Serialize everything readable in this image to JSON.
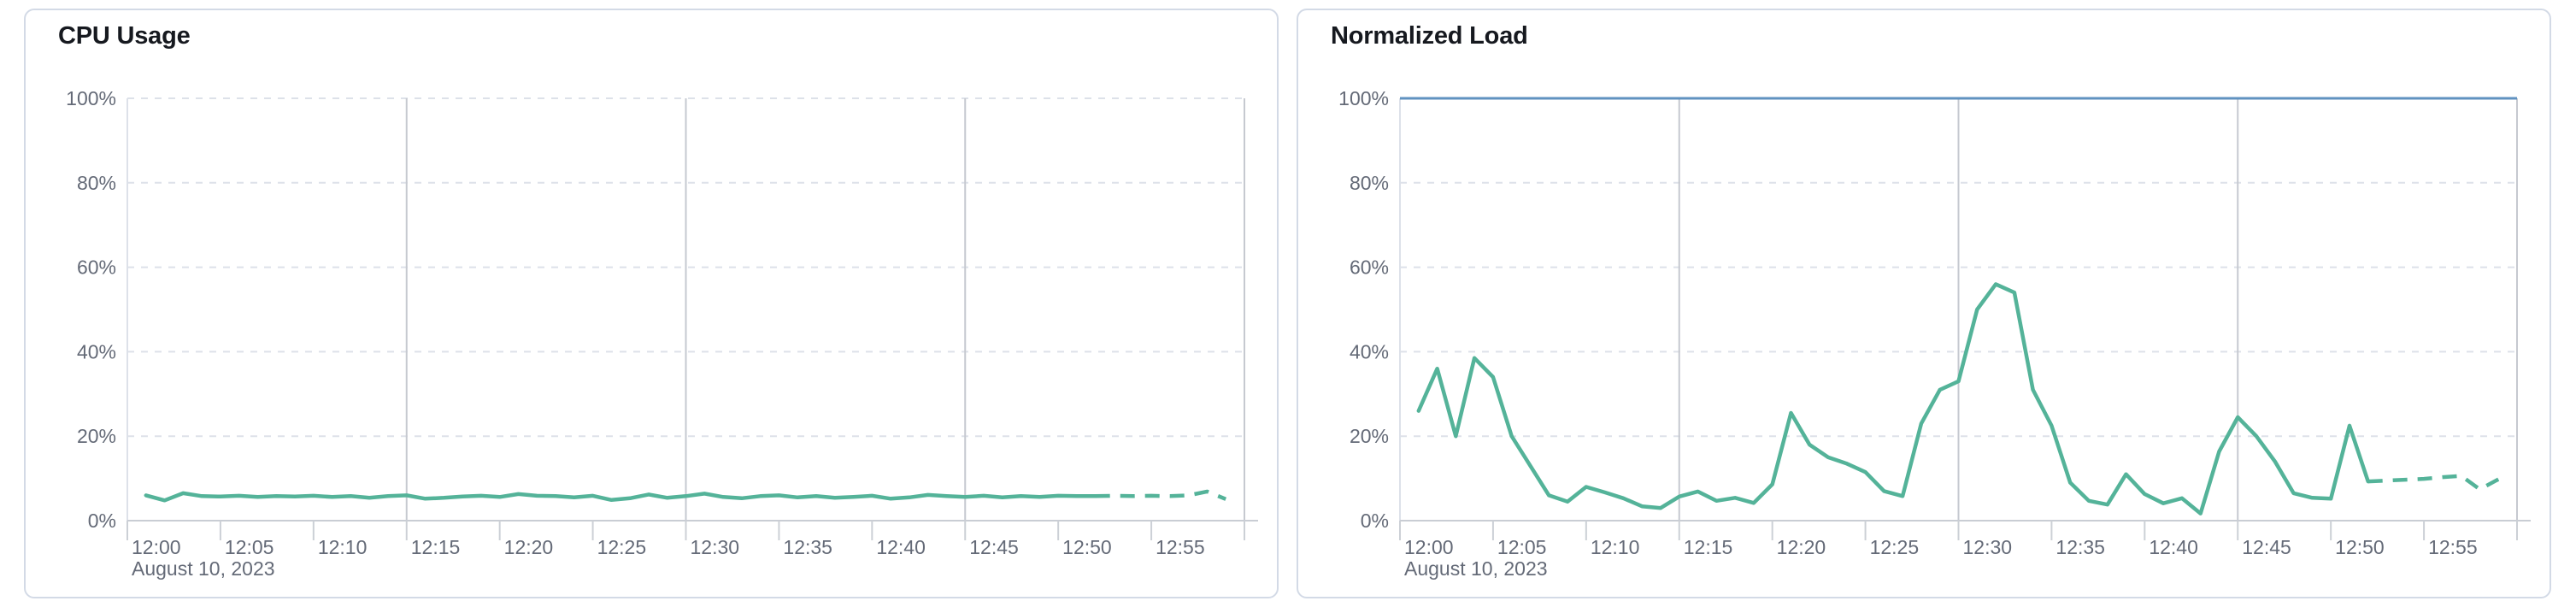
{
  "style": {
    "page_background": "#ffffff",
    "panel_background": "#ffffff",
    "panel_border": "#d3dae6",
    "title_color": "#16191f",
    "axis_text_color": "#646a77",
    "grid_dashed_color": "#dde1e9",
    "grid_vertical_color": "#c6c9d0",
    "axis_line_color": "#c9cdd4",
    "yaxis_line_color": "#dde1e9",
    "tick_color": "#ccd0d6",
    "series_green": "#54b399",
    "threshold_blue": "#6092c0"
  },
  "panels": [
    {
      "title": "CPU Usage"
    },
    {
      "title": "Normalized Load"
    }
  ],
  "chart_data": [
    {
      "type": "line",
      "title": "CPU Usage",
      "x_axis": {
        "tick_labels": [
          "12:00",
          "12:05",
          "12:10",
          "12:15",
          "12:20",
          "12:25",
          "12:30",
          "12:35",
          "12:40",
          "12:45",
          "12:50",
          "12:55"
        ],
        "tick_minutes": [
          0,
          5,
          10,
          15,
          20,
          25,
          30,
          35,
          40,
          45,
          50,
          55
        ],
        "end_tick_minute": 60,
        "date_label": "August 10, 2023",
        "range_minutes": [
          0,
          60
        ]
      },
      "y_axis": {
        "tick_labels": [
          "0%",
          "20%",
          "40%",
          "60%",
          "80%",
          "100%"
        ],
        "tick_values": [
          0,
          20,
          40,
          60,
          80,
          100
        ],
        "ylim": [
          0,
          100
        ]
      },
      "grid": {
        "horizontal_style": "dashed",
        "vertical_minutes": [
          15,
          30,
          45,
          60
        ]
      },
      "threshold_line": null,
      "series": [
        {
          "name": "CPU Usage",
          "color": "#54b399",
          "start_minute": 1,
          "step_minutes": 1,
          "dashed_from_minute": 52,
          "values": [
            6,
            4.8,
            6.5,
            5.8,
            5.7,
            5.9,
            5.6,
            5.8,
            5.7,
            5.9,
            5.6,
            5.8,
            5.4,
            5.8,
            6.0,
            5.2,
            5.4,
            5.7,
            5.9,
            5.6,
            6.3,
            5.9,
            5.8,
            5.5,
            5.9,
            4.9,
            5.3,
            6.2,
            5.4,
            5.8,
            6.4,
            5.6,
            5.3,
            5.8,
            6.0,
            5.5,
            5.8,
            5.4,
            5.6,
            5.9,
            5.2,
            5.5,
            6.1,
            5.8,
            5.6,
            5.9,
            5.5,
            5.8,
            5.6,
            5.9,
            5.8,
            5.8,
            5.9,
            5.8,
            5.9,
            5.8,
            6.0,
            6.9,
            5.1
          ]
        }
      ]
    },
    {
      "type": "line",
      "title": "Normalized Load",
      "x_axis": {
        "tick_labels": [
          "12:00",
          "12:05",
          "12:10",
          "12:15",
          "12:20",
          "12:25",
          "12:30",
          "12:35",
          "12:40",
          "12:45",
          "12:50",
          "12:55"
        ],
        "tick_minutes": [
          0,
          5,
          10,
          15,
          20,
          25,
          30,
          35,
          40,
          45,
          50,
          55
        ],
        "end_tick_minute": 60,
        "date_label": "August 10, 2023",
        "range_minutes": [
          0,
          60
        ]
      },
      "y_axis": {
        "tick_labels": [
          "0%",
          "20%",
          "40%",
          "60%",
          "80%",
          "100%"
        ],
        "tick_values": [
          0,
          20,
          40,
          60,
          80,
          100
        ],
        "ylim": [
          0,
          100
        ]
      },
      "grid": {
        "horizontal_style": "dashed",
        "vertical_minutes": [
          15,
          30,
          45,
          60
        ]
      },
      "threshold_line": {
        "value": 100,
        "color": "#6092c0"
      },
      "series": [
        {
          "name": "Normalized Load",
          "color": "#54b399",
          "start_minute": 1,
          "step_minutes": 1,
          "dashed_from_minute": 52,
          "values": [
            26,
            36,
            20,
            38.5,
            34,
            20,
            13,
            6,
            4.5,
            8,
            6.7,
            5.3,
            3.4,
            3,
            5.7,
            6.9,
            4.7,
            5.4,
            4.2,
            8.6,
            25.5,
            18,
            15,
            13.5,
            11.5,
            7,
            5.8,
            23,
            31,
            33,
            50,
            56,
            54,
            31,
            22.5,
            9,
            4.7,
            3.8,
            11,
            6.3,
            4.1,
            5.3,
            1.7,
            16.4,
            24.5,
            20,
            14,
            6.5,
            5.4,
            5.2,
            22.5,
            9.3,
            9.5,
            9.7,
            9.9,
            10.3,
            10.6,
            7.4,
            9.8
          ]
        }
      ]
    }
  ]
}
